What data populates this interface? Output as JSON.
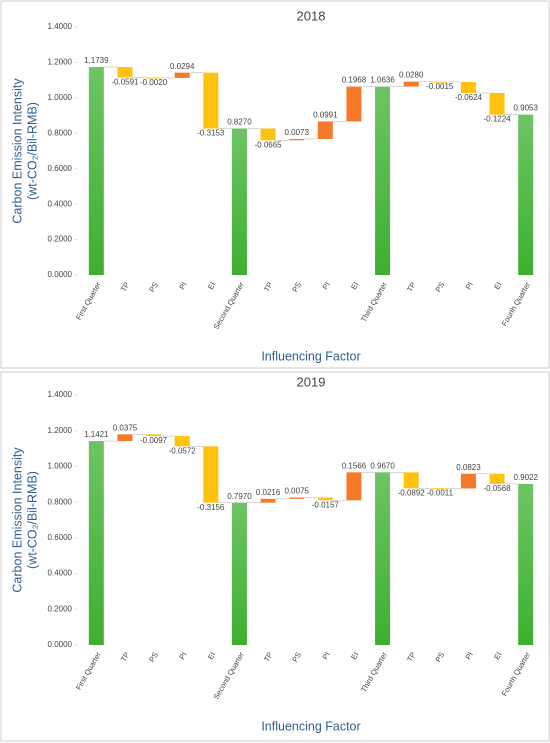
{
  "chart_data": [
    {
      "type": "waterfall",
      "title": "2018",
      "x_label": "Influencing Factor",
      "y_label": [
        "Carbon Emission Intensity",
        "(wt-CO₂/Bil-RMB)"
      ],
      "categories": [
        "First Quarter",
        "TP",
        "PS",
        "PI",
        "EI",
        "Second Quarter",
        "TP",
        "PS",
        "PI",
        "EI",
        "Third Quarter",
        "TP",
        "PS",
        "PI",
        "EI",
        "Fourth Quarter"
      ],
      "values": [
        1.1739,
        -0.0591,
        -0.002,
        0.0294,
        -0.3153,
        0.827,
        -0.0665,
        0.0073,
        0.0991,
        0.1968,
        1.0636,
        0.028,
        -0.0015,
        -0.0624,
        -0.1224,
        0.9053
      ],
      "value_labels": [
        "1.1739",
        "-0.0591",
        "-0.0020",
        "0.0294",
        "-0.3153",
        "0.8270",
        "-0.0665",
        "0.0073",
        "0.0991",
        "0.1968",
        "1.0636",
        "0.0280",
        "-0.0015",
        "-0.0624",
        "-0.1224",
        "0.9053"
      ],
      "totals": [
        0,
        5,
        10,
        15
      ],
      "total_color": "#3db030",
      "increase_color": "#f4792b",
      "decrease_color": "#ffc20e",
      "ylim": [
        0,
        1.4
      ],
      "yticks": [
        {
          "value": 0,
          "label": "0.0000"
        },
        {
          "value": 0.2,
          "label": "0.2000"
        },
        {
          "value": 0.4,
          "label": "0.4000"
        },
        {
          "value": 0.6,
          "label": "0.6000"
        },
        {
          "value": 0.8,
          "label": "0.8000"
        },
        {
          "value": 1,
          "label": "1.0000"
        },
        {
          "value": 1.2,
          "label": "1.2000"
        },
        {
          "value": 1.4,
          "label": "1.4000"
        }
      ]
    },
    {
      "type": "waterfall",
      "title": "2019",
      "x_label": "Influencing Factor",
      "y_label": [
        "Carbon Emission Intensity",
        "(wt-CO₂/Bil-RMB)"
      ],
      "categories": [
        "First Quarter",
        "TP",
        "PS",
        "PI",
        "EI",
        "Second Quarter",
        "TP",
        "PS",
        "PI",
        "EI",
        "Third Quarter",
        "TP",
        "PS",
        "PI",
        "EI",
        "Fourth Quarter"
      ],
      "values": [
        1.1421,
        0.0375,
        -0.0097,
        -0.0572,
        -0.3156,
        0.797,
        0.0216,
        0.0075,
        -0.0157,
        0.1566,
        0.967,
        -0.0892,
        -0.0011,
        0.0823,
        -0.0568,
        0.9022
      ],
      "value_labels": [
        "1.1421",
        "0.0375",
        "-0.0097",
        "-0.0572",
        "-0.3156",
        "0.7970",
        "0.0216",
        "0.0075",
        "-0.0157",
        "0.1566",
        "0.9670",
        "-0.0892",
        "-0.0011",
        "0.0823",
        "-0.0568",
        "0.9022"
      ],
      "totals": [
        0,
        5,
        10,
        15
      ],
      "total_color": "#3db030",
      "increase_color": "#f4792b",
      "decrease_color": "#ffc20e",
      "ylim": [
        0,
        1.4
      ],
      "yticks": [
        {
          "value": 0,
          "label": "0.0000"
        },
        {
          "value": 0.2,
          "label": "0.2000"
        },
        {
          "value": 0.4,
          "label": "0.4000"
        },
        {
          "value": 0.6,
          "label": "0.6000"
        },
        {
          "value": 0.8,
          "label": "0.8000"
        },
        {
          "value": 1,
          "label": "1.0000"
        },
        {
          "value": 1.2,
          "label": "1.2000"
        },
        {
          "value": 1.4,
          "label": "1.4000"
        }
      ]
    }
  ]
}
